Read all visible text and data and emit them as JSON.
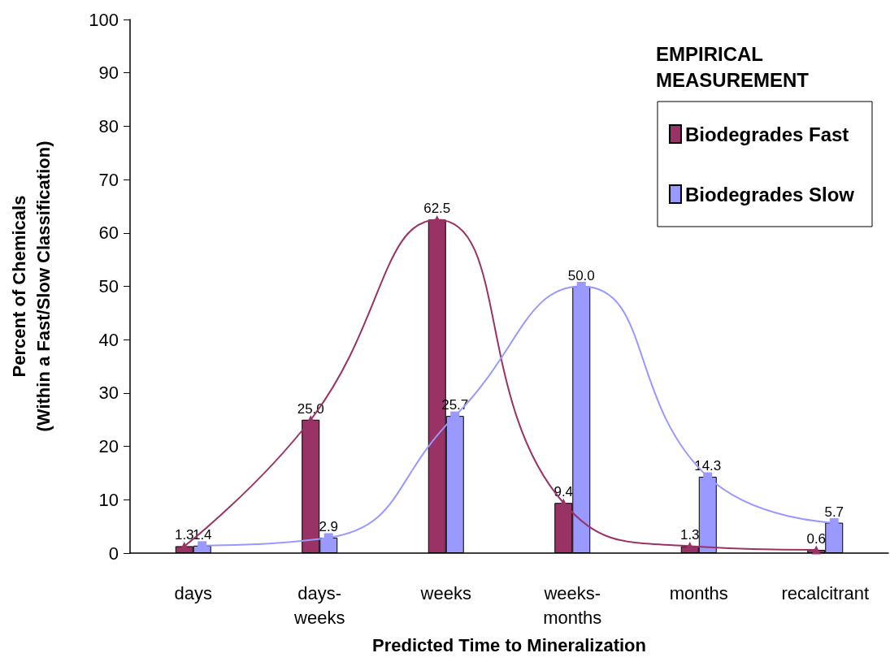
{
  "chart_data": {
    "type": "bar",
    "xlabel": "Predicted Time to Mineralization",
    "ylabel": "Percent of Chemicals\n(Within a Fast/Slow Classification)",
    "legend_title": "EMPIRICAL\nMEASUREMENT",
    "legend": "top right",
    "categories": [
      "days",
      "days-weeks",
      "weeks",
      "weeks-months",
      "months",
      "recalcitrant"
    ],
    "ylim": [
      0,
      100
    ],
    "yticks": [
      0,
      10,
      20,
      30,
      40,
      50,
      60,
      70,
      80,
      90,
      100
    ],
    "series": [
      {
        "name": "Biodegrades Fast",
        "color": "#993366",
        "values": [
          1.3,
          25.0,
          62.5,
          9.4,
          1.3,
          0.6
        ],
        "value_labels": [
          "1.3",
          "25.0",
          "62.5",
          "9.4",
          "1.3",
          "0.6"
        ]
      },
      {
        "name": "Biodegrades Slow",
        "color": "#9999ff",
        "values": [
          1.4,
          2.9,
          25.7,
          50.0,
          14.3,
          5.7
        ],
        "value_labels": [
          "1.4",
          "2.9",
          "25.7",
          "50.0",
          "14.3",
          "5.7"
        ]
      },
      {
        "type": "line",
        "color": "#993366",
        "marker": "triangle",
        "values": [
          1.3,
          25.0,
          62.5,
          9.4,
          1.3,
          0.6
        ]
      },
      {
        "type": "line",
        "color": "#9999ff",
        "marker": "square",
        "values": [
          1.4,
          2.9,
          25.7,
          50.0,
          14.3,
          5.7
        ]
      }
    ]
  }
}
